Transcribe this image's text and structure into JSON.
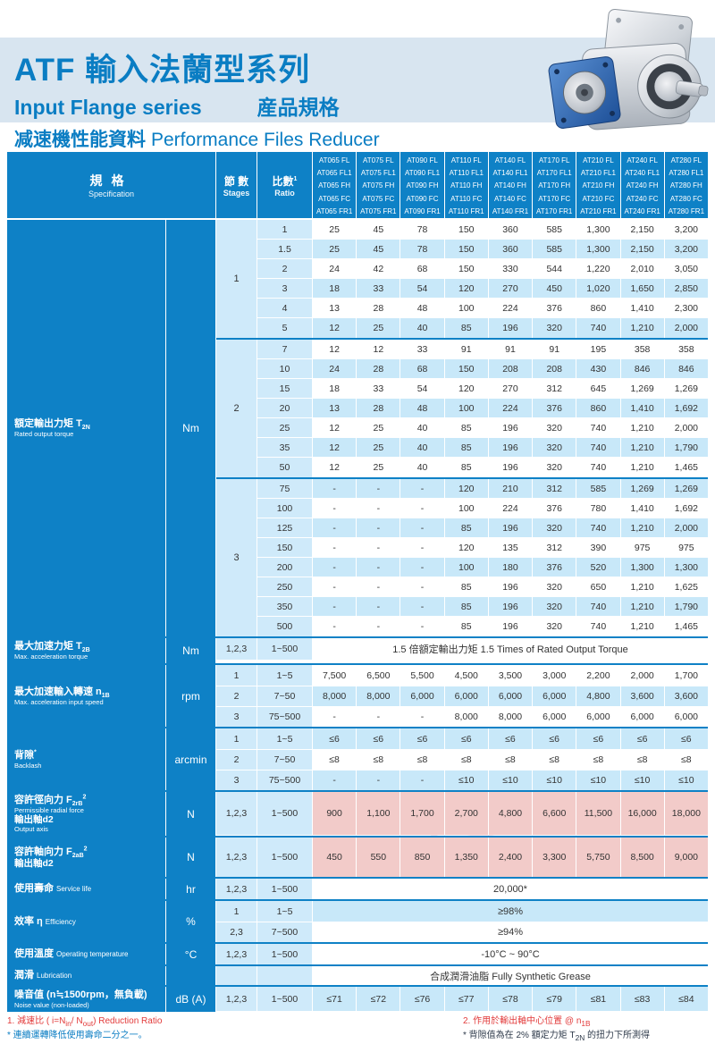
{
  "header": {
    "title": "ATF 輸入法蘭型系列",
    "subtitle_en": "Input Flange series",
    "subtitle_zh": "産品規格",
    "section_zh": "减速機性能資料",
    "section_en": "Performance Files Reducer"
  },
  "table": {
    "spec_header": {
      "zh": "規格",
      "en": "Specification"
    },
    "stages_header": {
      "zh": "節 數",
      "en": "Stages"
    },
    "ratio_header": {
      "zh": "比數",
      "note": "1",
      "en": "Ratio"
    },
    "models": [
      [
        "AT065 FL",
        "AT065 FL1",
        "AT065 FH",
        "AT065 FC",
        "AT065 FR1"
      ],
      [
        "AT075 FL",
        "AT075 FL1",
        "AT075 FH",
        "AT075 FC",
        "AT075 FR1"
      ],
      [
        "AT090 FL",
        "AT090 FL1",
        "AT090 FH",
        "AT090 FC",
        "AT090 FR1"
      ],
      [
        "AT110 FL",
        "AT110 FL1",
        "AT110 FH",
        "AT110 FC",
        "AT110 FR1"
      ],
      [
        "AT140 FL",
        "AT140 FL1",
        "AT140 FH",
        "AT140 FC",
        "AT140 FR1"
      ],
      [
        "AT170 FL",
        "AT170 FL1",
        "AT170 FH",
        "AT170 FC",
        "AT170 FR1"
      ],
      [
        "AT210 FL",
        "AT210 FL1",
        "AT210 FH",
        "AT210 FC",
        "AT210 FR1"
      ],
      [
        "AT240 FL",
        "AT240 FL1",
        "AT240 FH",
        "AT240 FC",
        "AT240 FR1"
      ],
      [
        "AT280 FL",
        "AT280 FL1",
        "AT280 FH",
        "AT280 FC",
        "AT280 FR1"
      ]
    ]
  },
  "torque": {
    "label_zh": "額定輸出力矩",
    "symbol": "T",
    "symbol_sub": "2N",
    "label_en": "Rated output torque",
    "unit": "Nm",
    "groups": [
      {
        "stage": "1",
        "rows": [
          {
            "ratio": "1",
            "values": [
              "25",
              "45",
              "78",
              "150",
              "360",
              "585",
              "1,300",
              "2,150",
              "3,200"
            ]
          },
          {
            "ratio": "1.5",
            "values": [
              "25",
              "45",
              "78",
              "150",
              "360",
              "585",
              "1,300",
              "2,150",
              "3,200"
            ]
          },
          {
            "ratio": "2",
            "values": [
              "24",
              "42",
              "68",
              "150",
              "330",
              "544",
              "1,220",
              "2,010",
              "3,050"
            ]
          },
          {
            "ratio": "3",
            "values": [
              "18",
              "33",
              "54",
              "120",
              "270",
              "450",
              "1,020",
              "1,650",
              "2,850"
            ]
          },
          {
            "ratio": "4",
            "values": [
              "13",
              "28",
              "48",
              "100",
              "224",
              "376",
              "860",
              "1,410",
              "2,300"
            ]
          },
          {
            "ratio": "5",
            "values": [
              "12",
              "25",
              "40",
              "85",
              "196",
              "320",
              "740",
              "1,210",
              "2,000"
            ]
          }
        ]
      },
      {
        "stage": "2",
        "rows": [
          {
            "ratio": "7",
            "values": [
              "12",
              "12",
              "33",
              "91",
              "91",
              "91",
              "195",
              "358",
              "358"
            ]
          },
          {
            "ratio": "10",
            "values": [
              "24",
              "28",
              "68",
              "150",
              "208",
              "208",
              "430",
              "846",
              "846"
            ]
          },
          {
            "ratio": "15",
            "values": [
              "18",
              "33",
              "54",
              "120",
              "270",
              "312",
              "645",
              "1,269",
              "1,269"
            ]
          },
          {
            "ratio": "20",
            "values": [
              "13",
              "28",
              "48",
              "100",
              "224",
              "376",
              "860",
              "1,410",
              "1,692"
            ]
          },
          {
            "ratio": "25",
            "values": [
              "12",
              "25",
              "40",
              "85",
              "196",
              "320",
              "740",
              "1,210",
              "2,000"
            ]
          },
          {
            "ratio": "35",
            "values": [
              "12",
              "25",
              "40",
              "85",
              "196",
              "320",
              "740",
              "1,210",
              "1,790"
            ]
          },
          {
            "ratio": "50",
            "values": [
              "12",
              "25",
              "40",
              "85",
              "196",
              "320",
              "740",
              "1,210",
              "1,465"
            ]
          }
        ]
      },
      {
        "stage": "3",
        "rows": [
          {
            "ratio": "75",
            "values": [
              "-",
              "-",
              "-",
              "120",
              "210",
              "312",
              "585",
              "1,269",
              "1,269"
            ]
          },
          {
            "ratio": "100",
            "values": [
              "-",
              "-",
              "-",
              "100",
              "224",
              "376",
              "780",
              "1,410",
              "1,692"
            ]
          },
          {
            "ratio": "125",
            "values": [
              "-",
              "-",
              "-",
              "85",
              "196",
              "320",
              "740",
              "1,210",
              "2,000"
            ]
          },
          {
            "ratio": "150",
            "values": [
              "-",
              "-",
              "-",
              "120",
              "135",
              "312",
              "390",
              "975",
              "975"
            ]
          },
          {
            "ratio": "200",
            "values": [
              "-",
              "-",
              "-",
              "100",
              "180",
              "376",
              "520",
              "1,300",
              "1,300"
            ]
          },
          {
            "ratio": "250",
            "values": [
              "-",
              "-",
              "-",
              "85",
              "196",
              "320",
              "650",
              "1,210",
              "1,625"
            ]
          },
          {
            "ratio": "350",
            "values": [
              "-",
              "-",
              "-",
              "85",
              "196",
              "320",
              "740",
              "1,210",
              "1,790"
            ]
          },
          {
            "ratio": "500",
            "values": [
              "-",
              "-",
              "-",
              "85",
              "196",
              "320",
              "740",
              "1,210",
              "1,465"
            ]
          }
        ]
      }
    ]
  },
  "sections": [
    {
      "name": "max-acceleration-torque",
      "zh": "最大加速力矩",
      "sym": {
        "base": "T",
        "sub": "2B"
      },
      "en": "Max. acceleration torque",
      "unit": "Nm",
      "rows": [
        {
          "stages": "1,2,3",
          "ratio": "1~500",
          "span": "1.5 倍額定輸出力矩  1.5 Times of Rated Output Torque",
          "bg": "white"
        }
      ]
    },
    {
      "name": "max-acceleration-input-speed",
      "zh": "最大加速輸入轉速",
      "sym": {
        "base": "n",
        "sub": "1B"
      },
      "en": "Max. acceleration input speed",
      "unit": "rpm",
      "rows": [
        {
          "stages": "1",
          "ratio": "1~5",
          "values": [
            "7,500",
            "6,500",
            "5,500",
            "4,500",
            "3,500",
            "3,000",
            "2,200",
            "2,000",
            "1,700"
          ],
          "bg": "white"
        },
        {
          "stages": "2",
          "ratio": "7~50",
          "values": [
            "8,000",
            "8,000",
            "6,000",
            "6,000",
            "6,000",
            "6,000",
            "4,800",
            "3,600",
            "3,600"
          ],
          "bg": "band"
        },
        {
          "stages": "3",
          "ratio": "75~500",
          "values": [
            "-",
            "-",
            "-",
            "8,000",
            "8,000",
            "6,000",
            "6,000",
            "6,000",
            "6,000"
          ],
          "bg": "white"
        }
      ]
    },
    {
      "name": "backlash",
      "zh": "背隙",
      "mark": "*",
      "en": "Backlash",
      "unit": "arcmin",
      "rows": [
        {
          "stages": "1",
          "ratio": "1~5",
          "values": [
            "≤6",
            "≤6",
            "≤6",
            "≤6",
            "≤6",
            "≤6",
            "≤6",
            "≤6",
            "≤6"
          ],
          "bg": "band"
        },
        {
          "stages": "2",
          "ratio": "7~50",
          "values": [
            "≤8",
            "≤8",
            "≤8",
            "≤8",
            "≤8",
            "≤8",
            "≤8",
            "≤8",
            "≤8"
          ],
          "bg": "white"
        },
        {
          "stages": "3",
          "ratio": "75~500",
          "values": [
            "-",
            "-",
            "-",
            "≤10",
            "≤10",
            "≤10",
            "≤10",
            "≤10",
            "≤10"
          ],
          "bg": "band"
        }
      ]
    },
    {
      "name": "permissible-radial-force",
      "zh": "容許徑向力",
      "sym": {
        "base": "F",
        "sub": "2rB",
        "sup": "2"
      },
      "en": "Permissible radial force",
      "zh2": "輸出軸d2",
      "en2": "Output axis",
      "unit": "N",
      "rows": [
        {
          "stages": "1,2,3",
          "ratio": "1~500",
          "values": [
            "900",
            "1,100",
            "1,700",
            "2,700",
            "4,800",
            "6,600",
            "11,500",
            "16,000",
            "18,000"
          ],
          "bg": "pink"
        }
      ]
    },
    {
      "name": "permissible-axial-force",
      "zh": "容許軸向力",
      "sym": {
        "base": "F",
        "sub": "2aB",
        "sup": "2"
      },
      "zh2": "輸出軸d2",
      "unit": "N",
      "rows": [
        {
          "stages": "1,2,3",
          "ratio": "1~500",
          "values": [
            "450",
            "550",
            "850",
            "1,350",
            "2,400",
            "3,300",
            "5,750",
            "8,500",
            "9,000"
          ],
          "bg": "pink"
        }
      ]
    },
    {
      "name": "service-life",
      "zh": "使用壽命",
      "en_inline": "Service life",
      "unit": "hr",
      "rows": [
        {
          "stages": "1,2,3",
          "ratio": "1~500",
          "span": "20,000*",
          "bg": "white"
        }
      ]
    },
    {
      "name": "efficiency",
      "zh": "效率 η",
      "en_inline": "Efficiency",
      "unit": "%",
      "rows": [
        {
          "stages": "1",
          "ratio": "1~5",
          "span": "≥98%",
          "bg": "band"
        },
        {
          "stages": "2,3",
          "ratio": "7~500",
          "span": "≥94%",
          "bg": "white"
        }
      ]
    },
    {
      "name": "operating-temperature",
      "zh": "使用溫度",
      "en_inline": "Operating temperature",
      "unit": "°C",
      "rows": [
        {
          "stages": "1,2,3",
          "ratio": "1~500",
          "span": "-10°C ~ 90°C",
          "bg": "white"
        }
      ]
    },
    {
      "name": "lubrication",
      "zh": "潤滑",
      "en_inline": "Lubrication",
      "unit": "",
      "rows": [
        {
          "stages": "",
          "ratio": "",
          "span": "合成潤滑油脂  Fully Synthetic Grease",
          "bg": "white"
        }
      ]
    },
    {
      "name": "noise-value",
      "zh": "噪音值 (n≒1500rpm，無負載)",
      "en": "Noise value (non-loaded)",
      "unit": "dB (A)",
      "rows": [
        {
          "stages": "1,2,3",
          "ratio": "1~500",
          "values": [
            "≤71",
            "≤72",
            "≤76",
            "≤77",
            "≤78",
            "≤79",
            "≤81",
            "≤83",
            "≤84"
          ],
          "bg": "band"
        }
      ]
    }
  ],
  "footnotes": {
    "note1_pre": "1. 減速比 ( i=N",
    "note1_sub1": "in",
    "note1_mid": "/ N",
    "note1_sub2": "out",
    "note1_post": ") Reduction Ratio",
    "note1b": "* 連續運轉降低使用壽命二分之一。",
    "note2_pre": "2. 作用於輸出軸中心位置 @ n",
    "note2_sub": "1B",
    "note2b_pre": "* 背隙值為在 2% 額定力矩 T",
    "note2b_sub": "2N",
    "note2b_post": " 的扭力下所測得"
  }
}
